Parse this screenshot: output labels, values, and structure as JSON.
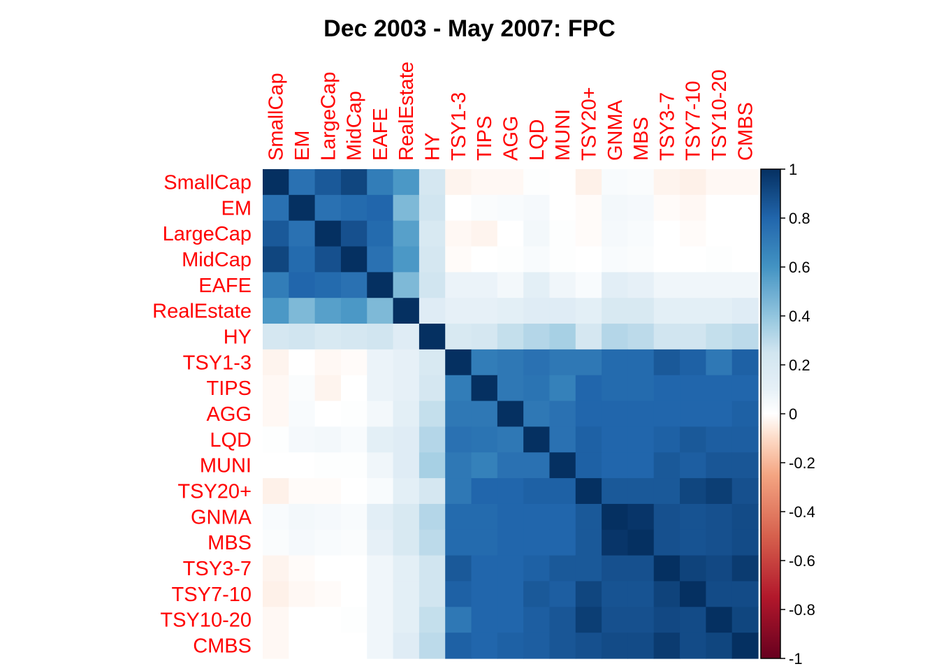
{
  "colors": {
    "label_color": "#ff0000",
    "palette_negative": "#67001f",
    "palette_mid": "#ffffff",
    "palette_positive": "#053061"
  },
  "chart_data": {
    "type": "heatmap",
    "title": "Dec 2003 - May 2007: FPC",
    "labels": [
      "SmallCap",
      "EM",
      "LargeCap",
      "MidCap",
      "EAFE",
      "RealEstate",
      "HY",
      "TSY1-3",
      "TIPS",
      "AGG",
      "LQD",
      "MUNI",
      "TSY20+",
      "GNMA",
      "MBS",
      "TSY3-7",
      "TSY7-10",
      "TSY10-20",
      "CMBS"
    ],
    "colorbar": {
      "min": -1,
      "max": 1,
      "ticks": [
        "1",
        "0.8",
        "0.6",
        "0.4",
        "0.2",
        "0",
        "-0.2",
        "-0.4",
        "-0.6",
        "-0.8",
        "-1"
      ]
    },
    "matrix": [
      [
        1.0,
        0.75,
        0.85,
        0.92,
        0.7,
        0.58,
        0.22,
        -0.03,
        -0.02,
        -0.02,
        0.01,
        0.0,
        -0.04,
        0.03,
        0.02,
        -0.03,
        -0.04,
        -0.02,
        -0.02
      ],
      [
        0.75,
        1.0,
        0.75,
        0.78,
        0.8,
        0.45,
        0.25,
        0.0,
        0.02,
        0.03,
        0.04,
        0.0,
        -0.01,
        0.05,
        0.04,
        -0.01,
        -0.02,
        0.0,
        0.0
      ],
      [
        0.85,
        0.75,
        1.0,
        0.88,
        0.78,
        0.55,
        0.2,
        -0.02,
        -0.03,
        0.0,
        0.05,
        0.01,
        -0.01,
        0.04,
        0.03,
        0.0,
        -0.01,
        0.0,
        0.0
      ],
      [
        0.92,
        0.78,
        0.88,
        1.0,
        0.75,
        0.58,
        0.22,
        -0.01,
        0.0,
        0.01,
        0.03,
        0.01,
        0.0,
        0.03,
        0.02,
        0.0,
        0.0,
        0.01,
        0.0
      ],
      [
        0.7,
        0.8,
        0.78,
        0.75,
        1.0,
        0.45,
        0.25,
        0.08,
        0.08,
        0.05,
        0.12,
        0.06,
        0.03,
        0.13,
        0.1,
        0.06,
        0.06,
        0.06,
        0.06
      ],
      [
        0.58,
        0.45,
        0.55,
        0.58,
        0.45,
        1.0,
        0.15,
        0.1,
        0.1,
        0.12,
        0.15,
        0.15,
        0.12,
        0.2,
        0.2,
        0.12,
        0.12,
        0.12,
        0.15
      ],
      [
        0.22,
        0.25,
        0.2,
        0.22,
        0.25,
        0.15,
        1.0,
        0.2,
        0.22,
        0.28,
        0.32,
        0.35,
        0.22,
        0.32,
        0.3,
        0.25,
        0.25,
        0.28,
        0.3
      ],
      [
        -0.03,
        0.0,
        -0.02,
        -0.01,
        0.08,
        0.1,
        0.2,
        1.0,
        0.7,
        0.72,
        0.75,
        0.72,
        0.72,
        0.78,
        0.78,
        0.85,
        0.82,
        0.72,
        0.82
      ],
      [
        -0.02,
        0.02,
        -0.03,
        0.0,
        0.08,
        0.1,
        0.22,
        0.7,
        1.0,
        0.72,
        0.74,
        0.68,
        0.8,
        0.78,
        0.78,
        0.8,
        0.8,
        0.8,
        0.8
      ],
      [
        -0.02,
        0.03,
        0.0,
        0.01,
        0.05,
        0.12,
        0.28,
        0.72,
        0.72,
        1.0,
        0.72,
        0.75,
        0.8,
        0.8,
        0.8,
        0.8,
        0.8,
        0.8,
        0.82
      ],
      [
        0.01,
        0.04,
        0.05,
        0.03,
        0.12,
        0.15,
        0.32,
        0.75,
        0.74,
        0.72,
        1.0,
        0.75,
        0.82,
        0.8,
        0.8,
        0.82,
        0.85,
        0.83,
        0.83
      ],
      [
        0.0,
        0.0,
        0.01,
        0.01,
        0.06,
        0.15,
        0.35,
        0.72,
        0.68,
        0.75,
        0.75,
        1.0,
        0.82,
        0.8,
        0.8,
        0.85,
        0.83,
        0.86,
        0.86
      ],
      [
        -0.04,
        -0.01,
        -0.01,
        0.0,
        0.03,
        0.12,
        0.22,
        0.72,
        0.8,
        0.8,
        0.82,
        0.82,
        1.0,
        0.85,
        0.85,
        0.85,
        0.92,
        0.95,
        0.88
      ],
      [
        0.03,
        0.05,
        0.04,
        0.03,
        0.13,
        0.2,
        0.32,
        0.78,
        0.78,
        0.8,
        0.8,
        0.8,
        0.85,
        1.0,
        0.98,
        0.88,
        0.87,
        0.88,
        0.9
      ],
      [
        0.02,
        0.04,
        0.03,
        0.02,
        0.1,
        0.2,
        0.3,
        0.78,
        0.78,
        0.8,
        0.8,
        0.8,
        0.85,
        0.98,
        1.0,
        0.88,
        0.87,
        0.88,
        0.9
      ],
      [
        -0.03,
        -0.01,
        0.0,
        0.0,
        0.06,
        0.12,
        0.25,
        0.85,
        0.8,
        0.8,
        0.82,
        0.85,
        0.85,
        0.88,
        0.88,
        1.0,
        0.93,
        0.91,
        0.96
      ],
      [
        -0.04,
        -0.02,
        -0.01,
        0.0,
        0.06,
        0.12,
        0.25,
        0.82,
        0.8,
        0.8,
        0.85,
        0.83,
        0.92,
        0.87,
        0.87,
        0.93,
        1.0,
        0.9,
        0.9
      ],
      [
        -0.02,
        0.0,
        0.0,
        0.01,
        0.06,
        0.12,
        0.28,
        0.72,
        0.8,
        0.8,
        0.83,
        0.86,
        0.95,
        0.88,
        0.88,
        0.91,
        0.9,
        1.0,
        0.92
      ],
      [
        -0.02,
        0.0,
        0.0,
        0.0,
        0.06,
        0.15,
        0.3,
        0.82,
        0.8,
        0.82,
        0.83,
        0.86,
        0.88,
        0.9,
        0.9,
        0.96,
        0.9,
        0.92,
        1.0
      ]
    ]
  }
}
